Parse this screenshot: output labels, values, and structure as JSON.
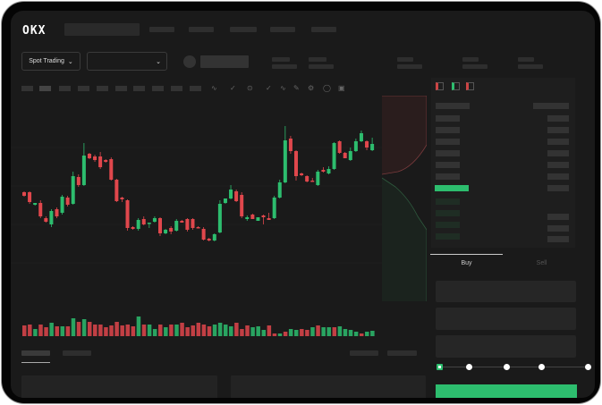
{
  "header": {
    "logo": "OKX"
  },
  "toolbar": {
    "market_type": "Spot Trading",
    "pair_select": ""
  },
  "trade": {
    "buy_tab": "Buy",
    "sell_tab": "Sell",
    "active_tab": "Buy",
    "slider_level": 0
  },
  "colors": {
    "up": "#2dbd6e",
    "down": "#e0474c",
    "background": "#1a1a1a"
  },
  "icons": [
    "chevron-down-icon",
    "indicator-icon",
    "draw-line-icon",
    "settings-icon",
    "fullscreen-icon",
    "orderbook-both-icon",
    "orderbook-bids-icon",
    "orderbook-asks-icon"
  ],
  "chart_data": {
    "type": "candlestick",
    "title": "",
    "xlabel": "",
    "ylabel": "",
    "grid": true,
    "candles_ohlc": [
      [
        97,
        98,
        92,
        93
      ],
      [
        97,
        98,
        84,
        86
      ],
      [
        83,
        85,
        82,
        85
      ],
      [
        85,
        88,
        68,
        70
      ],
      [
        68,
        70,
        63,
        64
      ],
      [
        61,
        78,
        58,
        76
      ],
      [
        78,
        80,
        68,
        70
      ],
      [
        74,
        94,
        72,
        92
      ],
      [
        91,
        93,
        81,
        83
      ],
      [
        84,
        120,
        83,
        115
      ],
      [
        114,
        117,
        103,
        105
      ],
      [
        105,
        152,
        104,
        138
      ],
      [
        140,
        141,
        134,
        135
      ],
      [
        137,
        139,
        131,
        133
      ],
      [
        137,
        142,
        123,
        125
      ],
      [
        133,
        134,
        130,
        131
      ],
      [
        134,
        136,
        110,
        111
      ],
      [
        111,
        112,
        86,
        87
      ],
      [
        91,
        92,
        86,
        89
      ],
      [
        88,
        89,
        54,
        57
      ],
      [
        58,
        59,
        55,
        56
      ],
      [
        56,
        68,
        54,
        66
      ],
      [
        67,
        70,
        60,
        61
      ],
      [
        62,
        63,
        57,
        63
      ],
      [
        64,
        70,
        63,
        68
      ],
      [
        68,
        69,
        48,
        51
      ],
      [
        51,
        56,
        50,
        55
      ],
      [
        57,
        59,
        50,
        53
      ],
      [
        54,
        67,
        53,
        65
      ],
      [
        65,
        66,
        63,
        63
      ],
      [
        67,
        68,
        53,
        55
      ],
      [
        67,
        68,
        55,
        57
      ],
      [
        58,
        59,
        57,
        57
      ],
      [
        56,
        58,
        43,
        44
      ],
      [
        45,
        46,
        42,
        43
      ],
      [
        43,
        51,
        42,
        50
      ],
      [
        52,
        88,
        51,
        84
      ],
      [
        85,
        90,
        84,
        90
      ],
      [
        90,
        105,
        89,
        100
      ],
      [
        98,
        100,
        86,
        87
      ],
      [
        94,
        97,
        68,
        70
      ],
      [
        67,
        71,
        65,
        69
      ],
      [
        72,
        73,
        67,
        67
      ],
      [
        65,
        69,
        65,
        69
      ],
      [
        71,
        72,
        61,
        69
      ],
      [
        68,
        74,
        66,
        66
      ],
      [
        68,
        93,
        67,
        91
      ],
      [
        91,
        111,
        90,
        108
      ],
      [
        108,
        171,
        107,
        155
      ],
      [
        157,
        160,
        140,
        143
      ],
      [
        143,
        144,
        110,
        115
      ],
      [
        118,
        119,
        115,
        116
      ],
      [
        115,
        116,
        108,
        109
      ],
      [
        110,
        113,
        109,
        109
      ],
      [
        105,
        122,
        104,
        120
      ],
      [
        122,
        125,
        119,
        120
      ],
      [
        118,
        126,
        117,
        123
      ],
      [
        123,
        153,
        122,
        152
      ],
      [
        154,
        155,
        140,
        141
      ],
      [
        141,
        142,
        135,
        135
      ],
      [
        133,
        147,
        132,
        143
      ],
      [
        143,
        157,
        142,
        154
      ],
      [
        154,
        166,
        153,
        163
      ],
      [
        154,
        155,
        144,
        147
      ],
      [
        144,
        158,
        143,
        151
      ]
    ],
    "volume": [
      12,
      13,
      8,
      13,
      10,
      15,
      11,
      11,
      11,
      20,
      16,
      19,
      16,
      13,
      13,
      10,
      12,
      16,
      12,
      13,
      11,
      22,
      13,
      13,
      8,
      13,
      10,
      13,
      13,
      15,
      10,
      12,
      15,
      13,
      11,
      13,
      15,
      13,
      11,
      15,
      8,
      12,
      10,
      11,
      7,
      12,
      3,
      3,
      5,
      8,
      7,
      8,
      7,
      10,
      12,
      10,
      10,
      10,
      11,
      8,
      7,
      5,
      3,
      5,
      6
    ],
    "volume_up": [
      0,
      0,
      1,
      0,
      0,
      1,
      0,
      1,
      0,
      1,
      0,
      1,
      0,
      0,
      0,
      0,
      0,
      0,
      0,
      0,
      0,
      1,
      0,
      1,
      1,
      0,
      1,
      0,
      1,
      0,
      0,
      0,
      0,
      0,
      0,
      1,
      1,
      1,
      1,
      0,
      0,
      0,
      1,
      1,
      1,
      0,
      0,
      1,
      0,
      1,
      1,
      0,
      0,
      1,
      0,
      1,
      1,
      0,
      1,
      1,
      1,
      1,
      0,
      1,
      1
    ]
  }
}
